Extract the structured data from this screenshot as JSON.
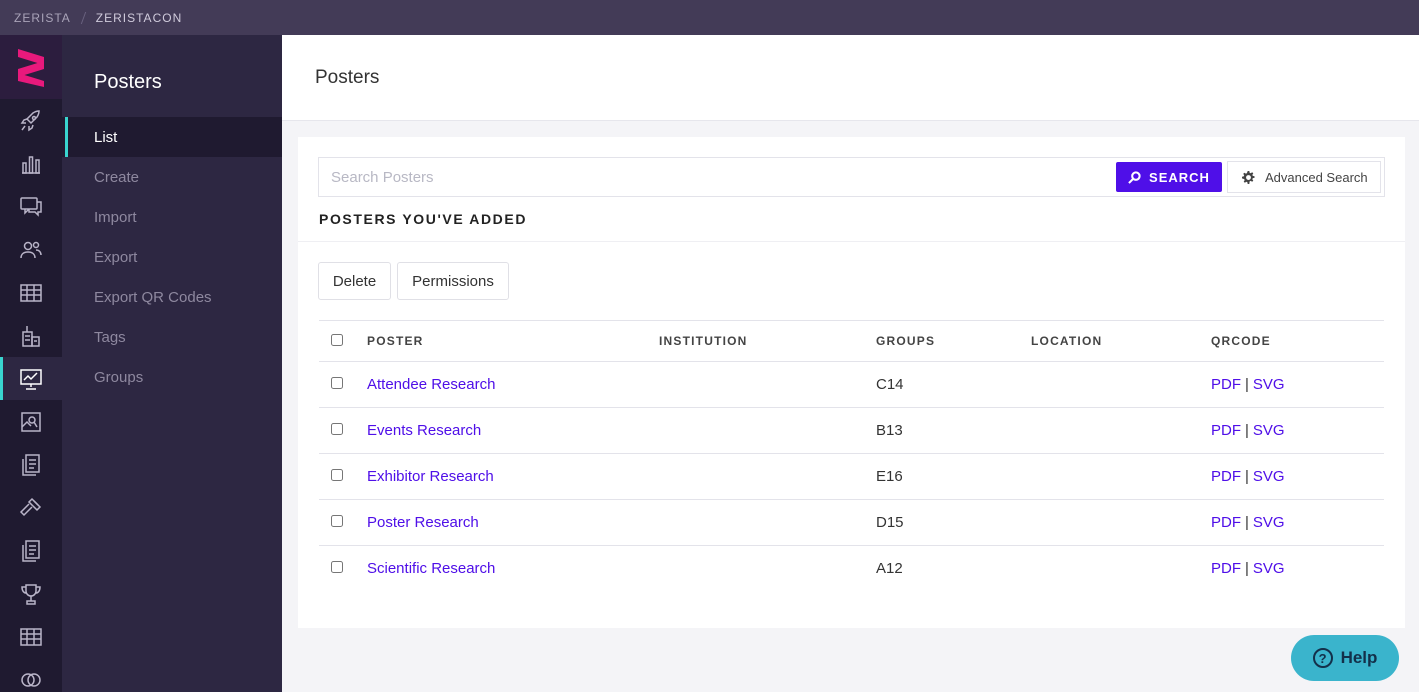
{
  "topbar": {
    "org": "ZERISTA",
    "event": "ZERISTACON"
  },
  "rail": {
    "items": [
      {
        "icon": "rocket-icon"
      },
      {
        "icon": "bar-chart-icon"
      },
      {
        "icon": "chat-icon"
      },
      {
        "icon": "people-icon"
      },
      {
        "icon": "grid-icon"
      },
      {
        "icon": "building-icon"
      },
      {
        "icon": "presentation-icon",
        "active": true
      },
      {
        "icon": "map-icon"
      },
      {
        "icon": "documents-icon"
      },
      {
        "icon": "hammer-icon"
      },
      {
        "icon": "documents-icon"
      },
      {
        "icon": "trophy-icon"
      },
      {
        "icon": "table-icon"
      },
      {
        "icon": "rings-icon"
      }
    ]
  },
  "subnav": {
    "title": "Posters",
    "items": [
      {
        "label": "List"
      },
      {
        "label": "Create"
      },
      {
        "label": "Import"
      },
      {
        "label": "Export"
      },
      {
        "label": "Export QR Codes"
      },
      {
        "label": "Tags"
      },
      {
        "label": "Groups"
      }
    ]
  },
  "page": {
    "title": "Posters"
  },
  "search": {
    "placeholder": "Search Posters",
    "button_label": "SEARCH",
    "advanced_label": "Advanced Search"
  },
  "section_title": "POSTERS YOU'VE ADDED",
  "actions": {
    "delete_label": "Delete",
    "permissions_label": "Permissions"
  },
  "table": {
    "columns": [
      "POSTER",
      "INSTITUTION",
      "GROUPS",
      "LOCATION",
      "QRCODE"
    ],
    "rows": [
      {
        "poster": "Attendee Research",
        "institution": "",
        "groups": "C14",
        "location": "",
        "pdf": "PDF",
        "svg": "SVG"
      },
      {
        "poster": "Events Research",
        "institution": "",
        "groups": "B13",
        "location": "",
        "pdf": "PDF",
        "svg": "SVG"
      },
      {
        "poster": "Exhibitor Research",
        "institution": "",
        "groups": "E16",
        "location": "",
        "pdf": "PDF",
        "svg": "SVG"
      },
      {
        "poster": "Poster Research",
        "institution": "",
        "groups": "D15",
        "location": "",
        "pdf": "PDF",
        "svg": "SVG"
      },
      {
        "poster": "Scientific Research",
        "institution": "",
        "groups": "A12",
        "location": "",
        "pdf": "PDF",
        "svg": "SVG"
      }
    ]
  },
  "help": {
    "label": "Help"
  },
  "colors": {
    "accent": "#4f0fe8",
    "teal": "#39d5cf",
    "logo": "#e8197c",
    "help": "#3ab4cc"
  }
}
